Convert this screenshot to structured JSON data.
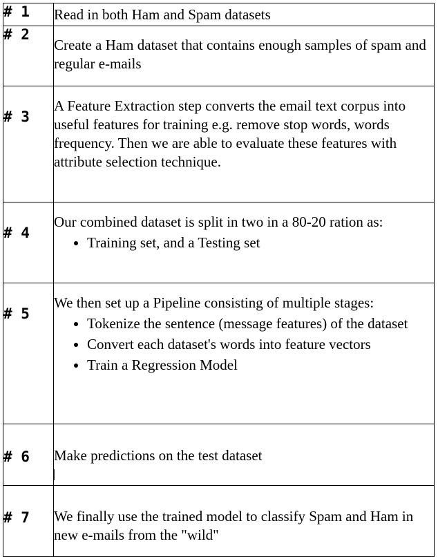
{
  "steps": [
    {
      "num": "# 1",
      "text": "Read in both Ham and Spam datasets",
      "bullets": []
    },
    {
      "num": "# 2",
      "text": "Create a Ham dataset that contains enough samples of spam and regular e-mails",
      "bullets": []
    },
    {
      "num": "# 3",
      "text": "A Feature Extraction step converts the email text corpus into useful features for training e.g. remove stop words, words frequency. Then we are able to evaluate these features with attribute selection technique.",
      "bullets": []
    },
    {
      "num": "# 4",
      "text": "Our combined dataset is split in two in a 80-20 ration as:",
      "bullets": [
        "Training set, and a  Testing set"
      ]
    },
    {
      "num": "# 5",
      "text": "We then set up a Pipeline consisting of multiple stages:",
      "bullets": [
        "Tokenize the sentence (message features) of the dataset",
        "Convert each dataset's words into feature vectors",
        "Train a Regression Model"
      ]
    },
    {
      "num": "# 6",
      "text": "Make predictions on the test dataset",
      "bullets": []
    },
    {
      "num": "# 7",
      "text": "We finally use the trained model to classify Spam and Ham in new e-mails from the \"wild\"",
      "bullets": []
    }
  ]
}
